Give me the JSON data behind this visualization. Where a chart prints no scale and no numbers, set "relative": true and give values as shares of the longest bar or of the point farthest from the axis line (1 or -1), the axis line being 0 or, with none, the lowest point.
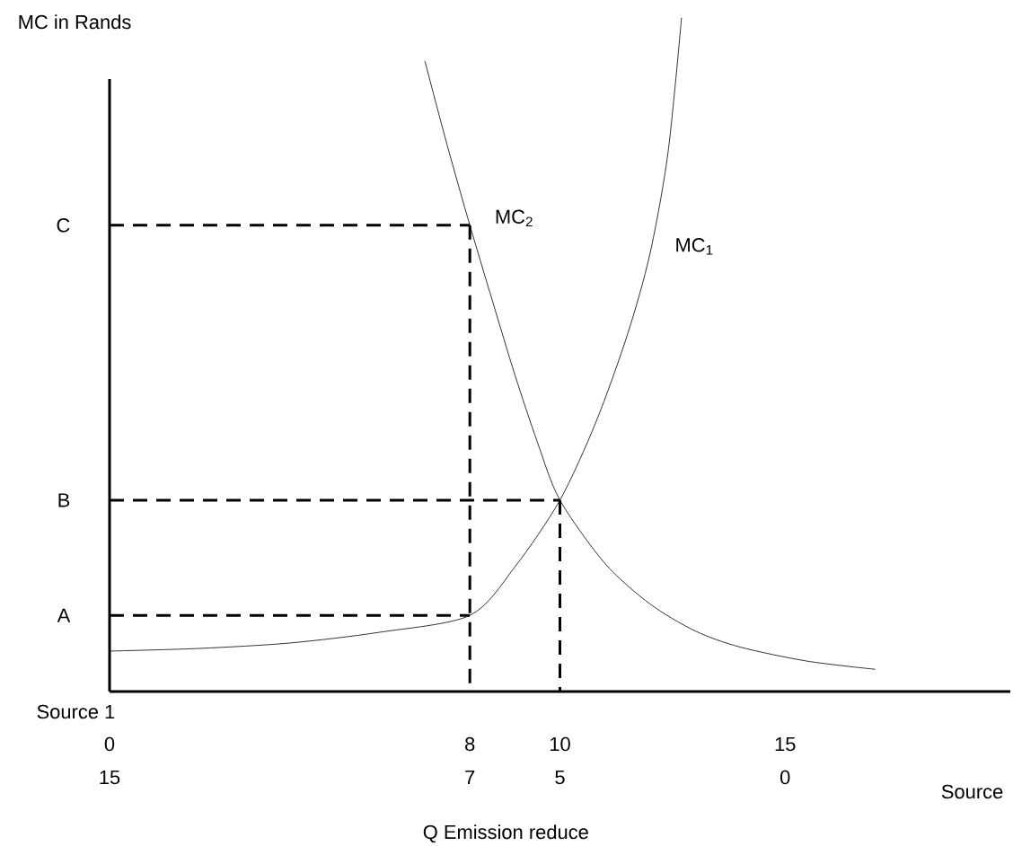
{
  "chart_data": {
    "type": "line",
    "relative": true,
    "xlabel": "Q Emission reduce",
    "ylabel": "MC in Rands",
    "x2label": "Source",
    "xlim": [
      0,
      20
    ],
    "xticks": [
      0,
      8,
      10,
      15
    ],
    "x2lim": [
      15,
      -5
    ],
    "x2ticks": [
      15,
      7,
      5,
      0
    ],
    "marker": "none",
    "line_style": "solid",
    "annotations": [
      "Source 1"
    ],
    "ref_lines": [
      {
        "axis": "y",
        "value": 0.113,
        "label": "A",
        "line_style": "dashed",
        "color": "#000000"
      },
      {
        "axis": "y",
        "value": 0.284,
        "label": "B",
        "line_style": "dashed",
        "color": "#000000"
      },
      {
        "axis": "y",
        "value": 0.692,
        "label": "C",
        "line_style": "dashed",
        "color": "#000000"
      }
    ],
    "series": [
      {
        "name": "MC$_{2}$",
        "color": "#000000",
        "x": [
          7,
          7.5,
          8,
          8.5,
          9,
          9.5,
          10,
          11,
          12,
          13,
          14,
          15.5,
          17
        ],
        "values": [
          0.936,
          0.81,
          0.692,
          0.58,
          0.47,
          0.37,
          0.284,
          0.19,
          0.13,
          0.09,
          0.066,
          0.045,
          0.033
        ]
      },
      {
        "name": "MC$_{1}$",
        "color": "#000000",
        "x": [
          0,
          2,
          4,
          6,
          8,
          9,
          10,
          10.8,
          11.5,
          12,
          12.4,
          12.7
        ],
        "values": [
          0.06,
          0.064,
          0.072,
          0.088,
          0.113,
          0.185,
          0.284,
          0.4,
          0.53,
          0.65,
          0.8,
          1.0
        ]
      },
      {
        "color": "#000000",
        "line_style": "dashed",
        "x": [
          8,
          8
        ],
        "values": [
          0.692,
          0
        ]
      },
      {
        "color": "#000000",
        "line_style": "dashed",
        "x": [
          10,
          10
        ],
        "values": [
          0.284,
          0
        ]
      }
    ]
  }
}
